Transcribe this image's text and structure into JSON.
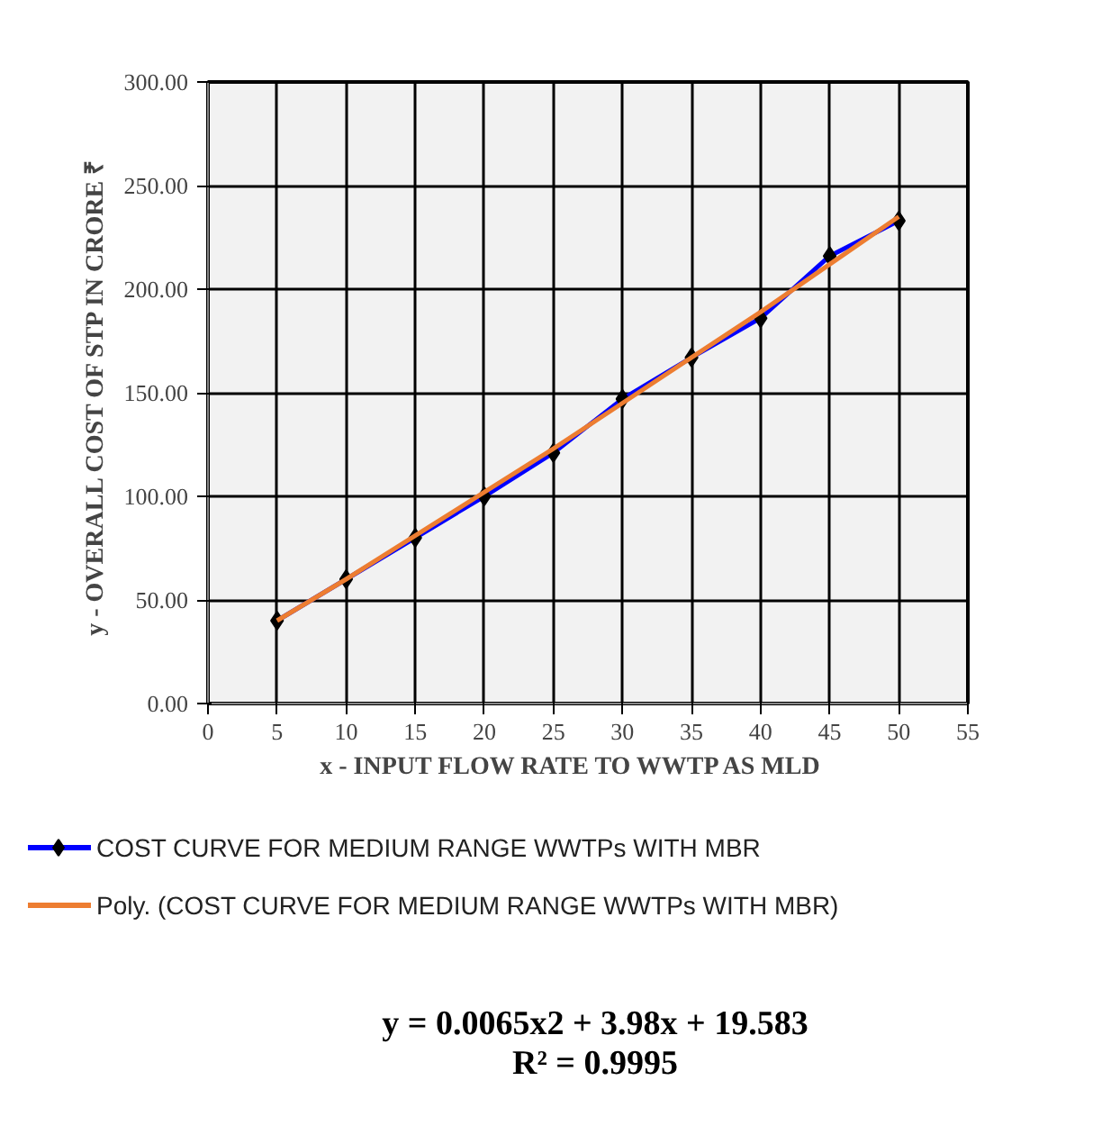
{
  "chart_data": {
    "type": "line",
    "xlabel": "x - INPUT  FLOW  RATE  TO  WWTP  AS MLD",
    "ylabel": "y - OVERALL  COST OF STP IN CRORE ₹",
    "x": [
      5,
      10,
      15,
      20,
      25,
      30,
      35,
      40,
      45,
      50
    ],
    "series": [
      {
        "name": "COST CURVE FOR MEDIUM RANGE WWTPs WITH MBR",
        "color": "#0000ff",
        "marker": "diamond",
        "values": [
          40,
          60,
          80,
          100,
          121,
          147,
          167,
          186,
          216,
          233
        ]
      },
      {
        "name": "Poly. (COST CURVE FOR MEDIUM RANGE WWTPs WITH MBR)",
        "color": "#ed7d31",
        "marker": "none",
        "values": [
          40,
          60,
          81,
          102,
          123,
          145,
          167,
          189,
          212,
          235
        ]
      }
    ],
    "xlim": [
      0,
      55
    ],
    "xticks": [
      0,
      5,
      10,
      15,
      20,
      25,
      30,
      35,
      40,
      45,
      50,
      55
    ],
    "ylim": [
      0,
      300
    ],
    "yticks": [
      {
        "value": 0,
        "label": "0.00"
      },
      {
        "value": 50,
        "label": "50.00"
      },
      {
        "value": 100,
        "label": "100.00"
      },
      {
        "value": 150,
        "label": "150.00"
      },
      {
        "value": 200,
        "label": "200.00"
      },
      {
        "value": 250,
        "label": "250.00"
      },
      {
        "value": 300,
        "label": "300.00"
      }
    ],
    "grid": true,
    "legend": "bottom",
    "line_style": "solid",
    "annotations": [
      "y = 0.0065x2 + 3.98x + 19.583",
      "R² = 0.9995"
    ]
  }
}
